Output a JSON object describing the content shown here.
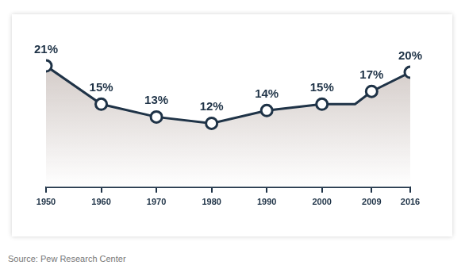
{
  "chart_data": {
    "type": "line",
    "x": [
      1950,
      1960,
      1970,
      1980,
      1990,
      2000,
      2006,
      2009,
      2016
    ],
    "values": [
      21,
      15,
      13,
      12,
      14,
      15,
      15,
      17,
      20
    ],
    "value_labels": [
      "21%",
      "15%",
      "13%",
      "12%",
      "14%",
      "15%",
      null,
      "17%",
      "20%"
    ],
    "color": "#1f3347",
    "xlim": [
      1950,
      2016
    ],
    "xticks": [
      1950,
      1960,
      1970,
      1980,
      1990,
      2000,
      2009,
      2016
    ],
    "ylim": [
      2,
      23
    ],
    "tick_labels": "x",
    "grid": false,
    "data_labels": true,
    "marker": "circle",
    "source": "Source: Pew Research Center"
  }
}
